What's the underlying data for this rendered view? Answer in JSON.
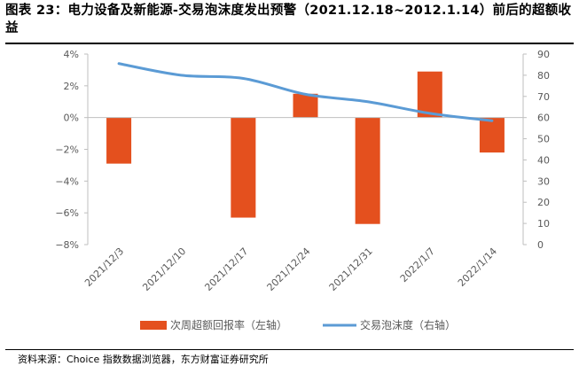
{
  "title": "图表 23：电力设备及新能源-交易泡沫度发出预警（2021.12.18~2012.1.14）前后的超额收益",
  "source": "资料来源：Choice 指数数据浏览器，东方财富证券研究所",
  "colors": {
    "bar": "#E4501E",
    "line": "#5B9BD5",
    "axis": "#BFBFBF",
    "text": "#595959"
  },
  "chart_data": {
    "type": "bar",
    "categories": [
      "2021/12/3",
      "2021/12/10",
      "2021/12/17",
      "2021/12/24",
      "2021/12/31",
      "2022/1/7",
      "2022/1/14"
    ],
    "series": [
      {
        "name": "次周超额回报率（左轴）",
        "type": "bar",
        "axis": "left",
        "values": [
          -2.9,
          null,
          -6.3,
          1.5,
          -6.7,
          2.9,
          -2.2
        ]
      },
      {
        "name": "交易泡沫度（右轴）",
        "type": "line",
        "axis": "right",
        "values": [
          85.5,
          80.0,
          78.5,
          71.0,
          67.5,
          62.0,
          58.5
        ]
      }
    ],
    "y_left": {
      "min": -8,
      "max": 4,
      "step": 2,
      "ticks": [
        "4%",
        "2%",
        "0%",
        "−2%",
        "−4%",
        "−6%",
        "−8%"
      ]
    },
    "y_right": {
      "min": 0,
      "max": 90,
      "step": 10,
      "ticks": [
        "90",
        "80",
        "70",
        "60",
        "50",
        "40",
        "30",
        "20",
        "10",
        "0"
      ]
    },
    "legend_position": "bottom",
    "grid": false
  }
}
